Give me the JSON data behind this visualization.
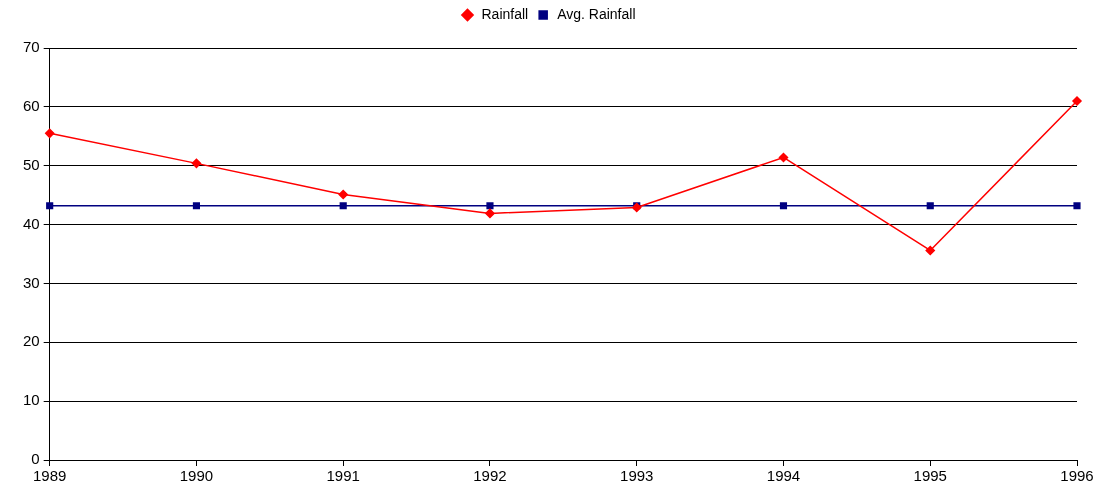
{
  "chart_data": {
    "type": "line",
    "categories": [
      "1989",
      "1990",
      "1991",
      "1992",
      "1993",
      "1994",
      "1995",
      "1996"
    ],
    "series": [
      {
        "name": "Rainfall",
        "color": "#ff0000",
        "marker": "diamond",
        "values": [
          55.5,
          50.4,
          45.1,
          41.9,
          42.9,
          51.4,
          35.6,
          61.0
        ]
      },
      {
        "name": "Avg. Rainfall",
        "color": "#000080",
        "marker": "square",
        "values": [
          43.2,
          43.2,
          43.2,
          43.2,
          43.2,
          43.2,
          43.2,
          43.2
        ]
      }
    ],
    "ylim": [
      0,
      70
    ],
    "yticks": [
      0,
      10,
      20,
      30,
      40,
      50,
      60,
      70
    ],
    "grid": "y",
    "legend": "top",
    "line_style": "solid"
  }
}
